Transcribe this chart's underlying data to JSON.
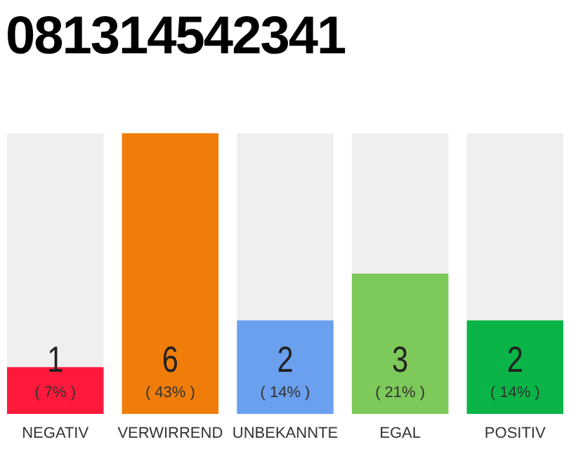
{
  "chart_data": {
    "type": "bar",
    "title": "081314542341",
    "categories": [
      "NEGATIV",
      "VERWIRREND",
      "UNBEKANNTE",
      "EGAL",
      "POSITIV"
    ],
    "values": [
      1,
      6,
      2,
      3,
      2
    ],
    "colors": [
      "#ff1a3c",
      "#f07d0a",
      "#6aa0ee",
      "#7dc95a",
      "#0ab446"
    ],
    "tick_labels": "x",
    "data_labels": true,
    "annotations": [
      "( 7% )",
      "( 43% )",
      "( 14% )",
      "( 21% )",
      "( 14% )"
    ]
  }
}
